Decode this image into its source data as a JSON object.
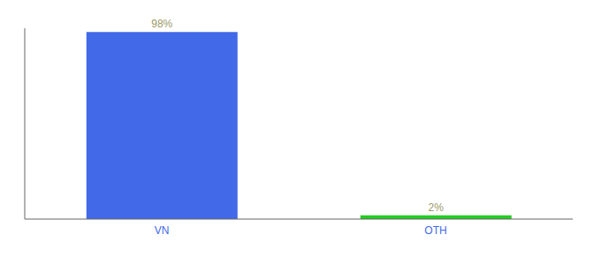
{
  "chart_data": {
    "type": "bar",
    "categories": [
      "VN",
      "OTH"
    ],
    "values": [
      98,
      2
    ],
    "colors": [
      "#4169E8",
      "#22CC22"
    ],
    "value_labels": [
      "98%",
      "2%"
    ],
    "data_labels": true,
    "ylim": [
      0,
      100
    ],
    "tick_labels": "x"
  }
}
